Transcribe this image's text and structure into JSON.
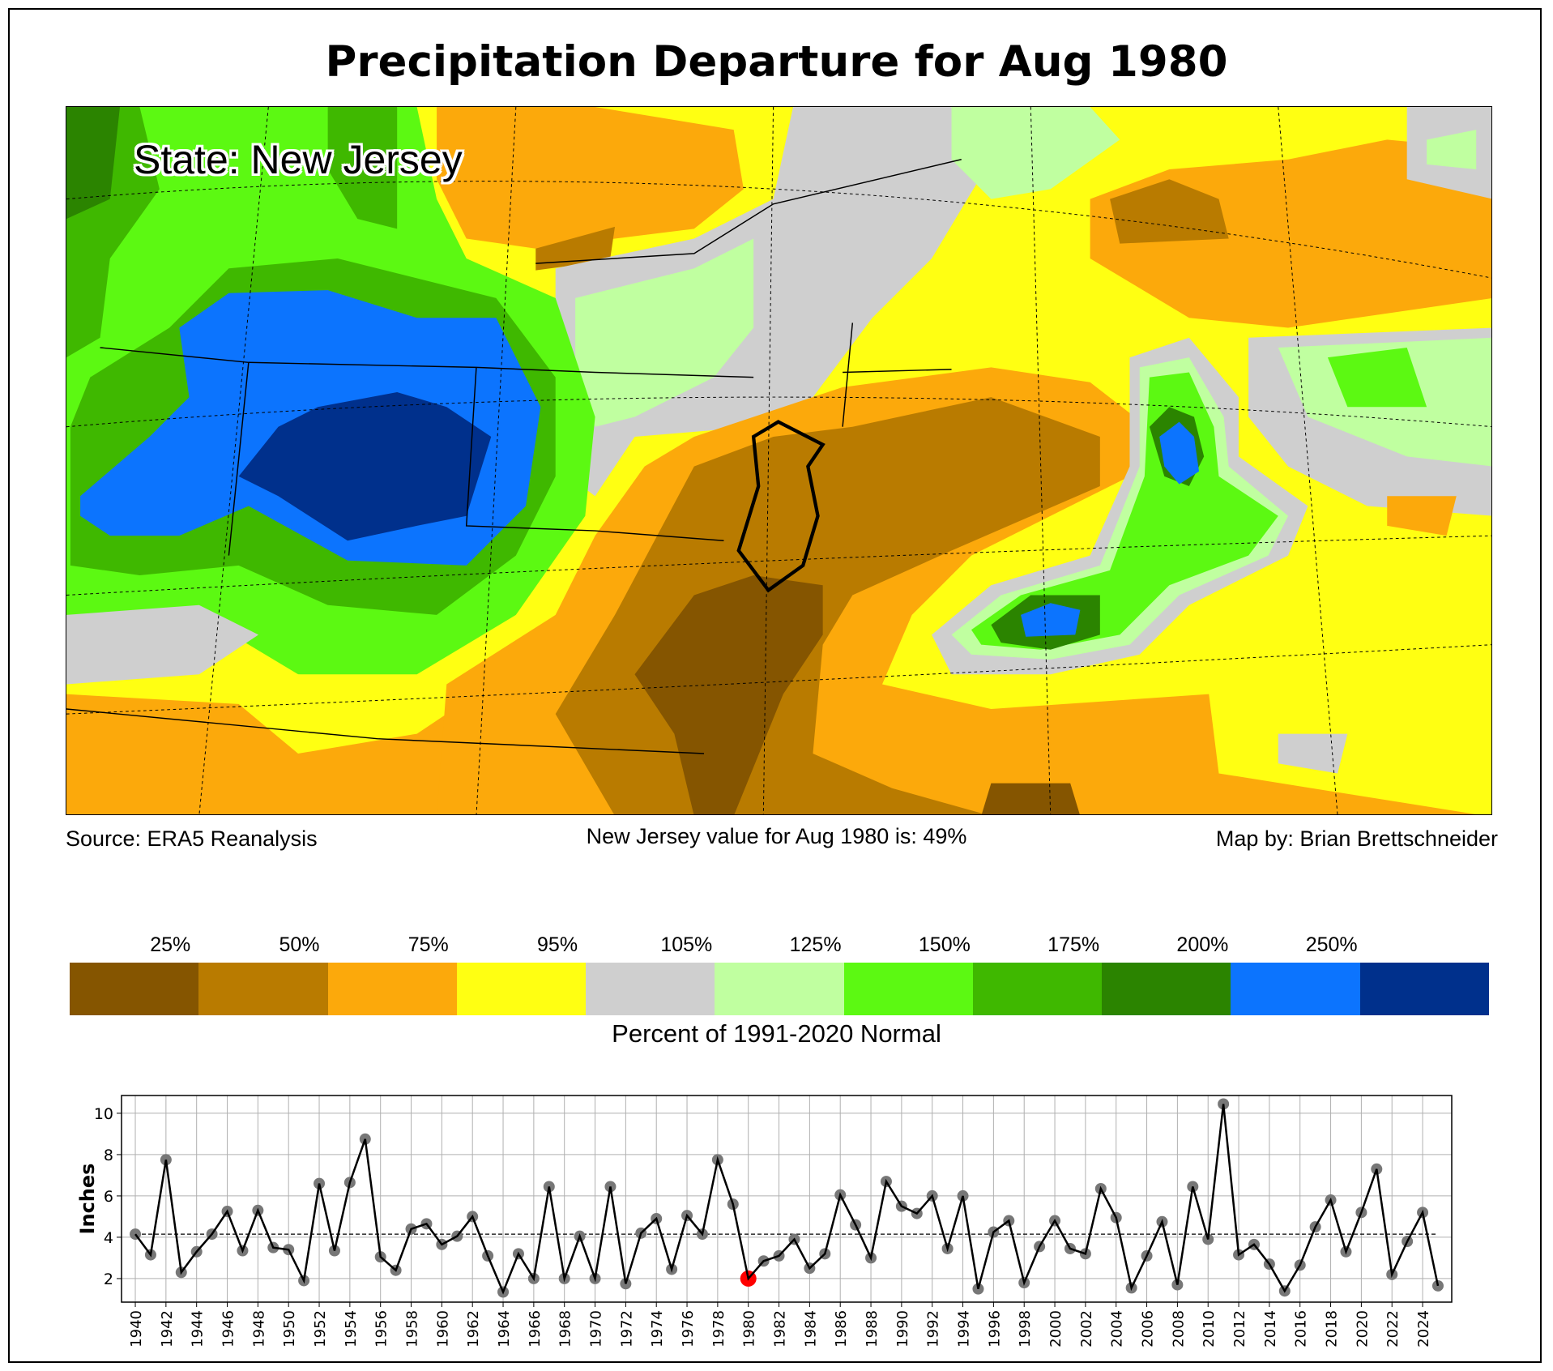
{
  "title": "Precipitation Departure for Aug 1980",
  "map": {
    "state_label": "State: New Jersey",
    "source": "Source: ERA5 Reanalysis",
    "state_value_text": "New Jersey value for Aug 1980 is: 49%",
    "credit": "Map by: Brian Brettschneider"
  },
  "colorbar": {
    "title": "Percent of 1991-2020 Normal",
    "labels": [
      "25%",
      "50%",
      "75%",
      "95%",
      "105%",
      "125%",
      "150%",
      "175%",
      "200%",
      "250%"
    ],
    "colors": [
      "#855500",
      "#b97b00",
      "#fca90b",
      "#ffff12",
      "#cfcfcf",
      "#c0ffa0",
      "#5cf912",
      "#3fb800",
      "#2b8400",
      "#0c74fe",
      "#00308c"
    ]
  },
  "chart_data": {
    "type": "line",
    "ylabel": "Inches",
    "xlabel": "",
    "ylim": [
      0.86,
      10.86
    ],
    "xlim": [
      1939.1,
      2025.9
    ],
    "yticks": [
      2,
      4,
      6,
      8,
      10
    ],
    "grid": true,
    "normal": 4.15,
    "highlight_year": 1980,
    "highlight_color": "#ff0000",
    "x": [
      1940,
      1941,
      1942,
      1943,
      1944,
      1945,
      1946,
      1947,
      1948,
      1949,
      1950,
      1951,
      1952,
      1953,
      1954,
      1955,
      1956,
      1957,
      1958,
      1959,
      1960,
      1961,
      1962,
      1963,
      1964,
      1965,
      1966,
      1967,
      1968,
      1969,
      1970,
      1971,
      1972,
      1973,
      1974,
      1975,
      1976,
      1977,
      1978,
      1979,
      1980,
      1981,
      1982,
      1983,
      1984,
      1985,
      1986,
      1987,
      1988,
      1989,
      1990,
      1991,
      1992,
      1993,
      1994,
      1995,
      1996,
      1997,
      1998,
      1999,
      2000,
      2001,
      2002,
      2003,
      2004,
      2005,
      2006,
      2007,
      2008,
      2009,
      2010,
      2011,
      2012,
      2013,
      2014,
      2015,
      2016,
      2017,
      2018,
      2019,
      2020,
      2021,
      2022,
      2023,
      2024,
      2025
    ],
    "values": [
      4.15,
      3.15,
      7.75,
      2.3,
      3.3,
      4.15,
      5.25,
      3.35,
      5.3,
      3.5,
      3.4,
      1.9,
      6.6,
      3.35,
      6.65,
      8.75,
      3.05,
      2.4,
      4.4,
      4.65,
      3.65,
      4.05,
      5.0,
      3.1,
      1.35,
      3.2,
      2.0,
      6.45,
      2.0,
      4.05,
      2.0,
      6.45,
      1.75,
      4.2,
      4.9,
      2.45,
      5.05,
      4.15,
      7.75,
      5.6,
      2.0,
      2.85,
      3.1,
      3.9,
      2.5,
      3.2,
      6.05,
      4.6,
      3.0,
      6.7,
      5.5,
      5.15,
      6.0,
      3.45,
      6.0,
      1.5,
      4.25,
      4.8,
      1.8,
      3.55,
      4.8,
      3.45,
      3.2,
      6.35,
      4.95,
      1.55,
      3.1,
      4.75,
      1.7,
      6.45,
      3.9,
      10.45,
      3.15,
      3.65,
      2.7,
      1.4,
      2.65,
      4.5,
      5.8,
      3.3,
      5.2,
      7.3,
      2.2,
      3.8,
      5.2,
      1.65
    ]
  }
}
